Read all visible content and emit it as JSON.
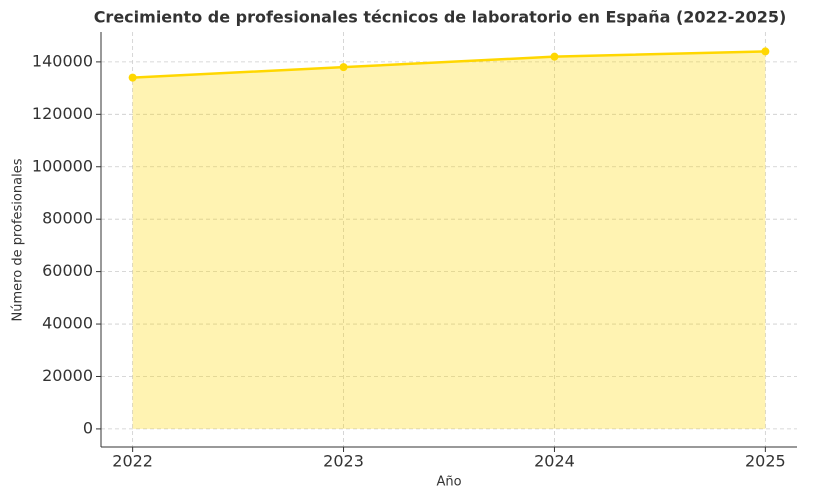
{
  "chart_data": {
    "type": "area",
    "title": "Crecimiento de profesionales técnicos de laboratorio en España (2022-2025)",
    "x_label": "Año",
    "y_label": "Número de profesionales",
    "x": [
      2022,
      2023,
      2024,
      2025
    ],
    "series": [
      {
        "color": "#FFD700",
        "values": [
          134000,
          138000,
          142000,
          144000
        ]
      }
    ],
    "xlim": [
      2021.85,
      2025.15
    ],
    "xticks": [
      2022,
      2023,
      2024,
      2025
    ],
    "ylim": [
      -6900,
      151400
    ],
    "yticks": [
      0,
      20000,
      40000,
      60000,
      80000,
      100000,
      120000,
      140000
    ],
    "grid": true
  }
}
